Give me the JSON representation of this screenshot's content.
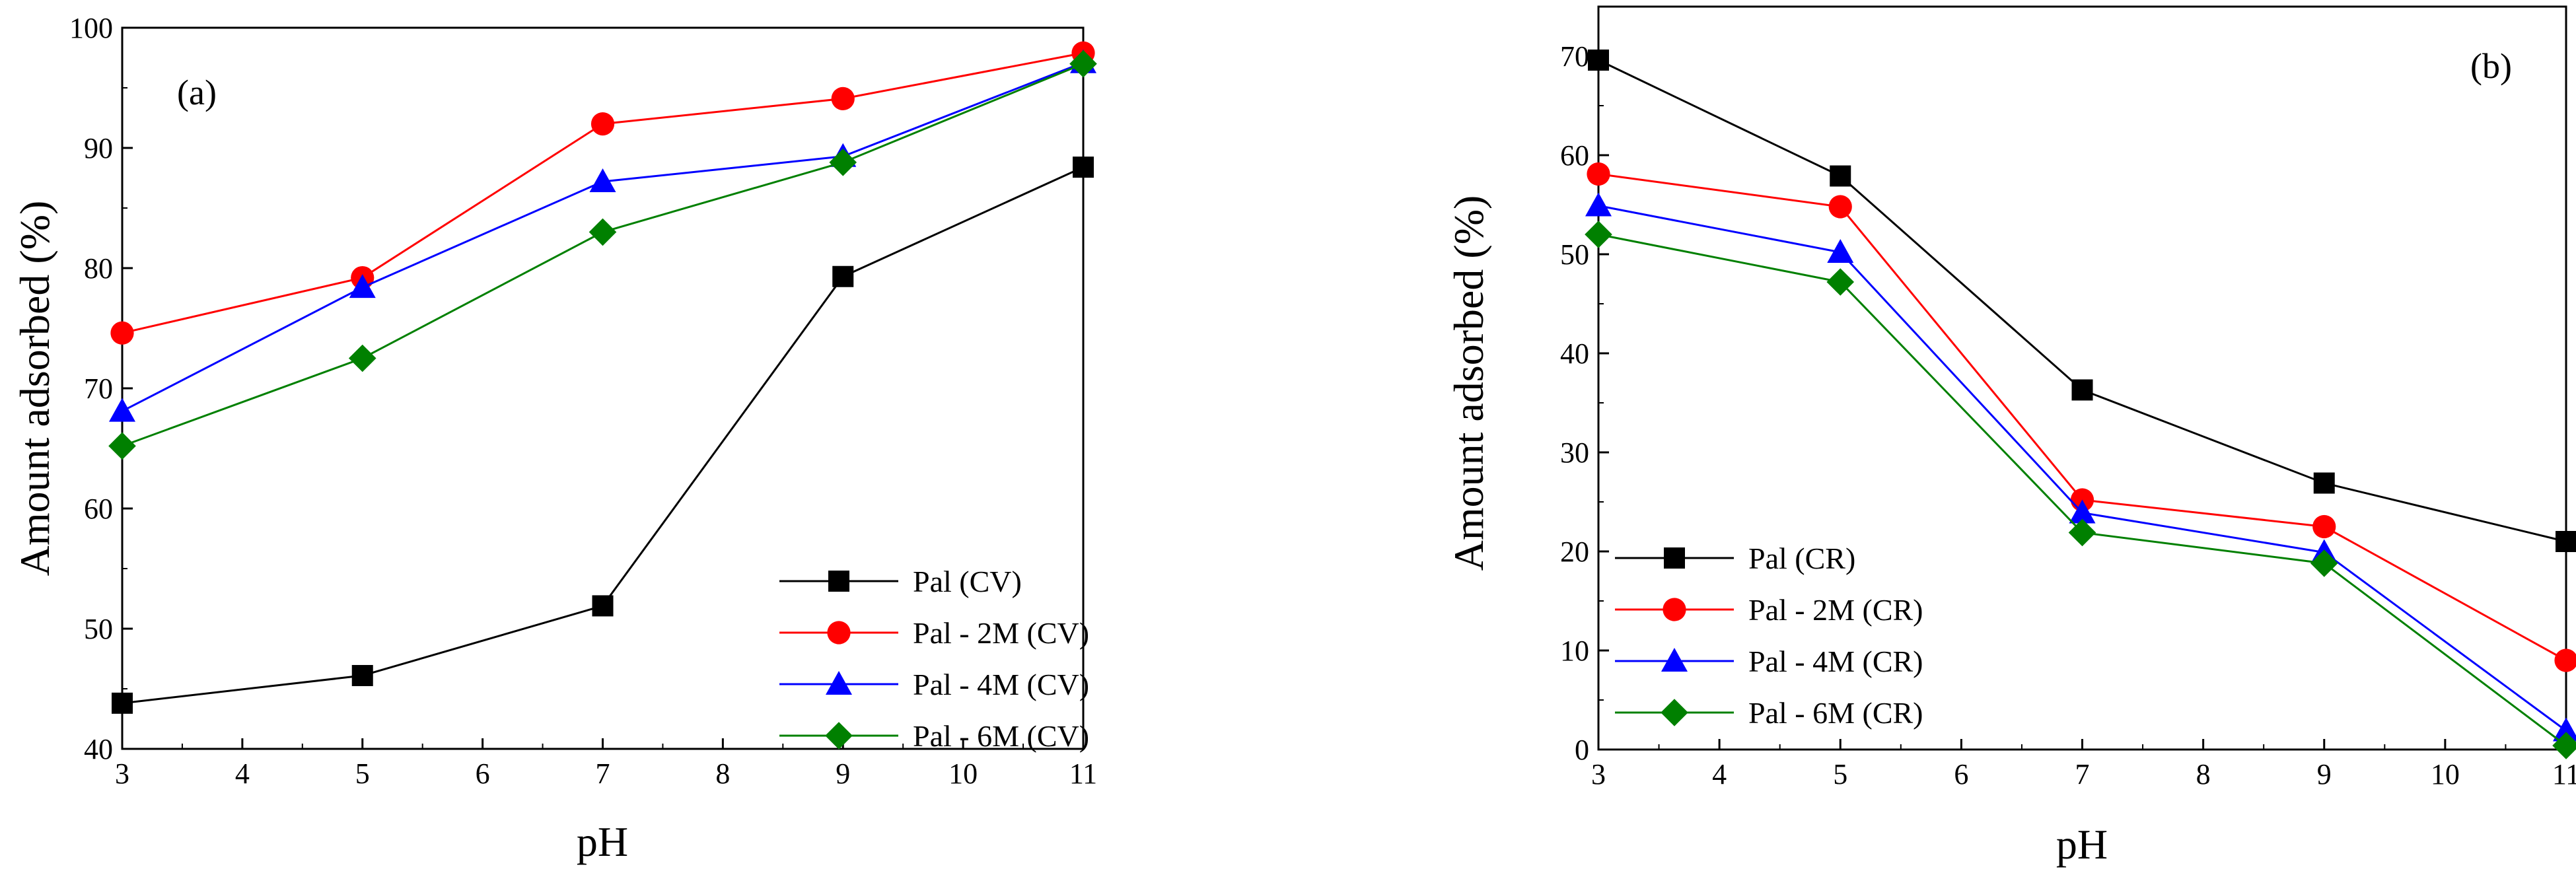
{
  "chart_data": [
    {
      "type": "line",
      "panel_label": "(a)",
      "xlabel": "pH",
      "ylabel": "Amount adsorbed (%)",
      "xlim": [
        3,
        11
      ],
      "ylim": [
        40,
        100
      ],
      "xticks": [
        "3",
        "4",
        "5",
        "6",
        "7",
        "8",
        "9",
        "10",
        "11"
      ],
      "yticks": [
        "40",
        "50",
        "60",
        "70",
        "80",
        "90",
        "100"
      ],
      "legend_position": "bottom-right",
      "grid": false,
      "x": [
        3,
        5,
        7,
        9,
        11
      ],
      "series": [
        {
          "name": "Pal (CV)",
          "color": "#000000",
          "marker": "square",
          "values": [
            43.8,
            46.1,
            51.9,
            79.3,
            88.4
          ]
        },
        {
          "name": "Pal - 2M (CV)",
          "color": "#ff0000",
          "marker": "circle",
          "values": [
            74.6,
            79.2,
            92.0,
            94.1,
            97.9
          ]
        },
        {
          "name": "Pal - 4M (CV)",
          "color": "#0000ff",
          "marker": "triangle",
          "values": [
            68.1,
            78.4,
            87.2,
            89.3,
            97.1
          ]
        },
        {
          "name": "Pal - 6M (CV)",
          "color": "#008000",
          "marker": "diamond",
          "values": [
            65.2,
            72.5,
            83.0,
            88.8,
            97.0
          ]
        }
      ]
    },
    {
      "type": "line",
      "panel_label": "(b)",
      "xlabel": "pH",
      "ylabel": "Amount adsorbed (%)",
      "xlim": [
        3,
        11
      ],
      "ylim": [
        0,
        75
      ],
      "xticks": [
        "3",
        "4",
        "5",
        "6",
        "7",
        "8",
        "9",
        "10",
        "11"
      ],
      "yticks": [
        "0",
        "10",
        "20",
        "30",
        "40",
        "50",
        "60",
        "70"
      ],
      "legend_position": "bottom-left",
      "grid": false,
      "x": [
        3,
        5,
        7,
        9,
        11
      ],
      "series": [
        {
          "name": "Pal (CR)",
          "color": "#000000",
          "marker": "square",
          "values": [
            69.6,
            57.9,
            36.3,
            26.9,
            21.0
          ]
        },
        {
          "name": "Pal - 2M (CR)",
          "color": "#ff0000",
          "marker": "circle",
          "values": [
            58.1,
            54.8,
            25.2,
            22.5,
            9.0
          ]
        },
        {
          "name": "Pal - 4M (CR)",
          "color": "#0000ff",
          "marker": "triangle",
          "values": [
            54.9,
            50.2,
            23.9,
            19.9,
            1.9
          ]
        },
        {
          "name": "Pal - 6M (CR)",
          "color": "#008000",
          "marker": "diamond",
          "values": [
            52.0,
            47.2,
            21.9,
            18.8,
            0.4
          ]
        }
      ]
    }
  ]
}
